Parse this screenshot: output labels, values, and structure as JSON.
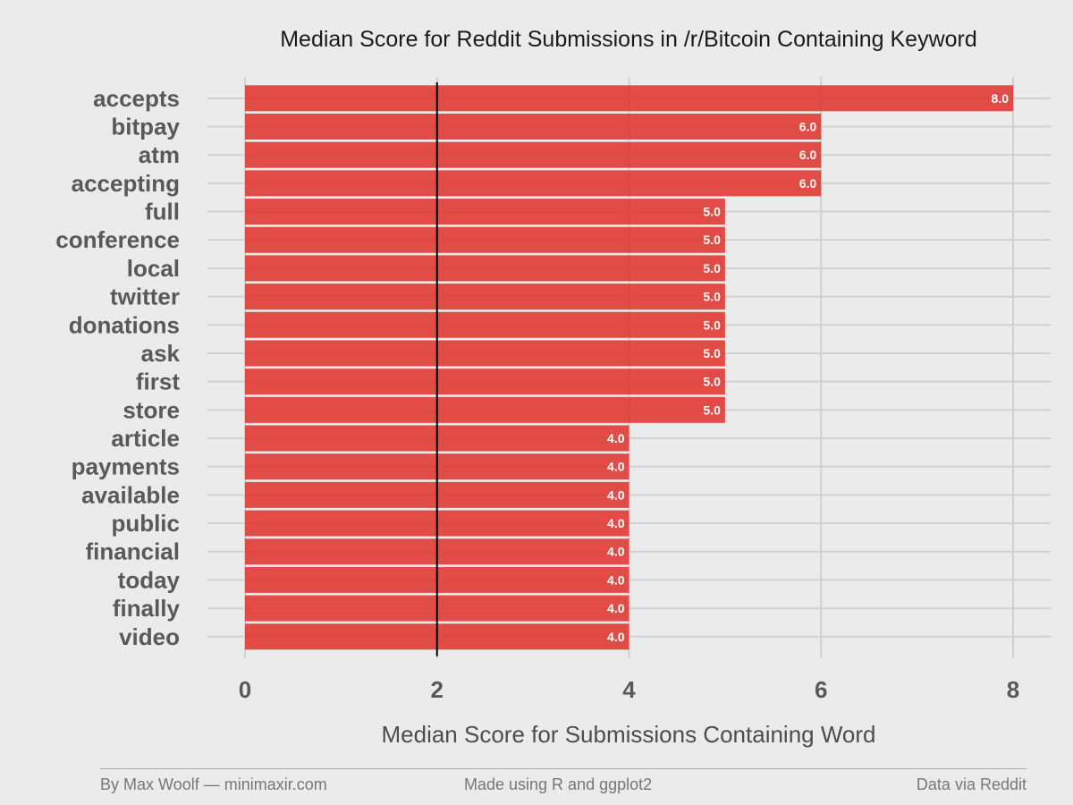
{
  "chart_data": {
    "type": "bar",
    "orientation": "horizontal",
    "title": "Median Score for Reddit Submissions in /r/Bitcoin Containing Keyword",
    "xlabel": "Median Score for Submissions Containing Word",
    "ylabel": "",
    "xlim": [
      0,
      8
    ],
    "xticks": [
      "0",
      "2",
      "4",
      "6",
      "8"
    ],
    "reference_line": 2,
    "grid": true,
    "bar_color": "#e0302a",
    "categories": [
      "accepts",
      "bitpay",
      "atm",
      "accepting",
      "full",
      "conference",
      "local",
      "twitter",
      "donations",
      "ask",
      "first",
      "store",
      "article",
      "payments",
      "available",
      "public",
      "financial",
      "today",
      "finally",
      "video"
    ],
    "values": [
      8.0,
      6.0,
      6.0,
      6.0,
      5.0,
      5.0,
      5.0,
      5.0,
      5.0,
      5.0,
      5.0,
      5.0,
      4.0,
      4.0,
      4.0,
      4.0,
      4.0,
      4.0,
      4.0,
      4.0
    ],
    "data_labels": [
      "8.0",
      "6.0",
      "6.0",
      "6.0",
      "5.0",
      "5.0",
      "5.0",
      "5.0",
      "5.0",
      "5.0",
      "5.0",
      "5.0",
      "4.0",
      "4.0",
      "4.0",
      "4.0",
      "4.0",
      "4.0",
      "4.0",
      "4.0"
    ]
  },
  "footer": {
    "left": "By Max Woolf — minimaxir.com",
    "center": "Made using R and ggplot2",
    "right": "Data via Reddit"
  }
}
